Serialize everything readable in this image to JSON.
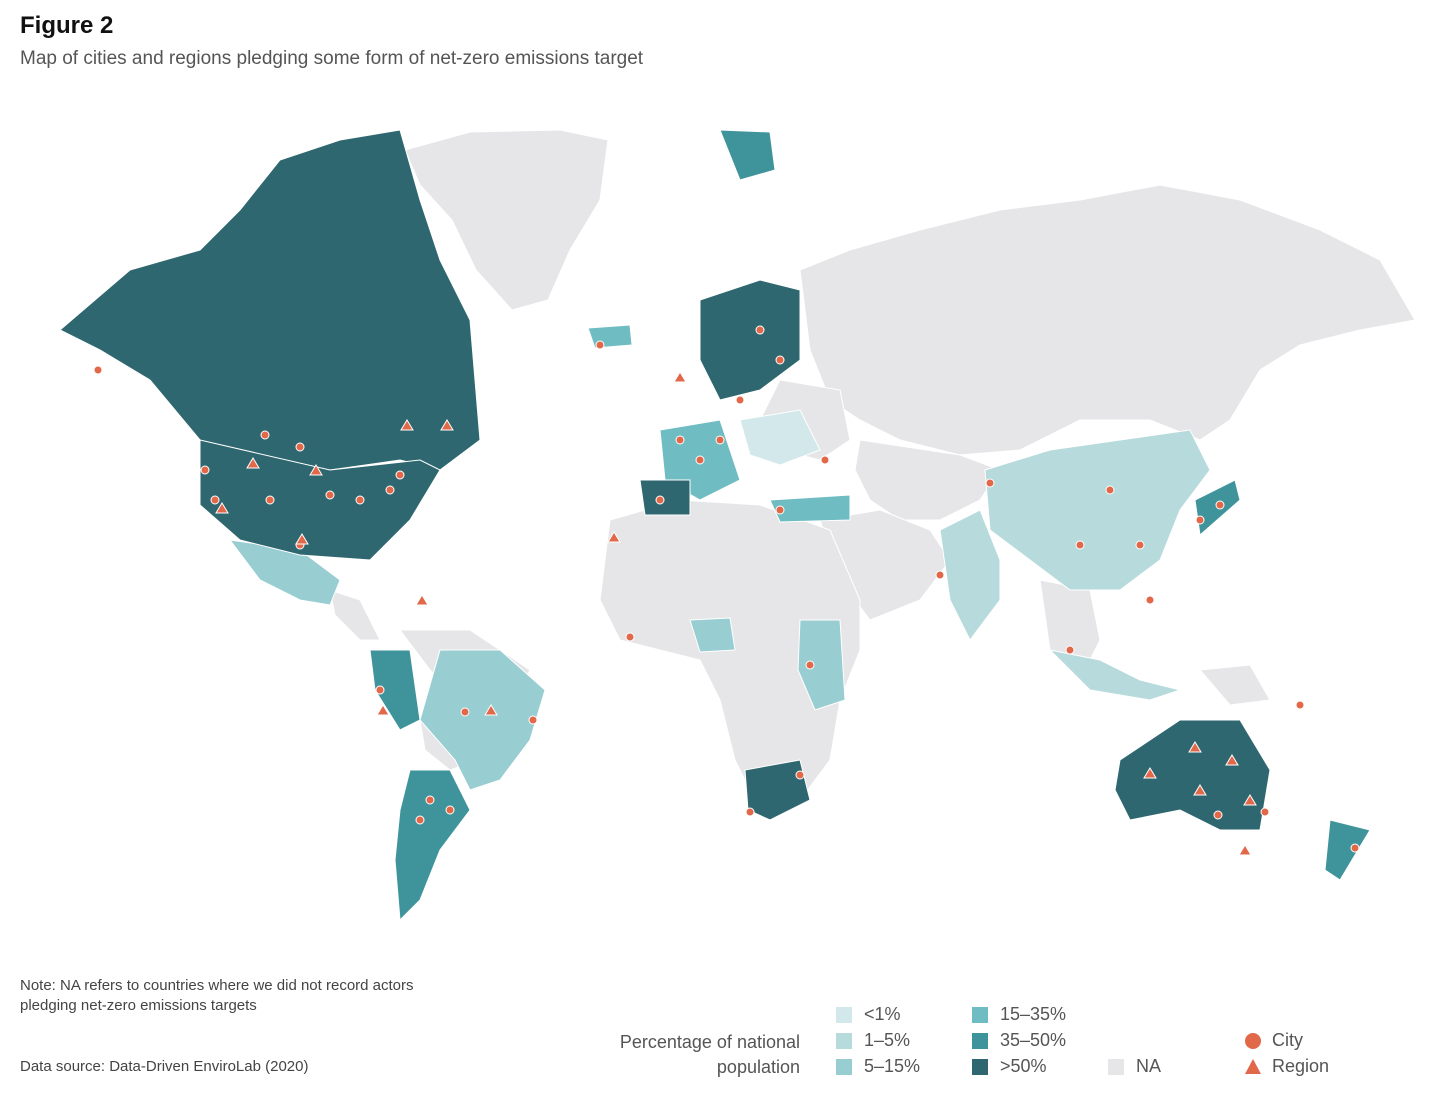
{
  "figure": {
    "label": "Figure 2",
    "subtitle": "Map of cities and regions pledging some form of net-zero emissions target"
  },
  "note": "Note: NA refers to countries where we did not record actors pledging net-zero emissions targets",
  "source": "Data source: Data-Driven EnviroLab (2020)",
  "legend": {
    "title_line1": "Percentage of national",
    "title_line2": "population",
    "bins": [
      {
        "label": "<1%",
        "color": "#d2e8ea"
      },
      {
        "label": "1–5%",
        "color": "#b7dadd"
      },
      {
        "label": "5–15%",
        "color": "#98cdd2"
      },
      {
        "label": "15–35%",
        "color": "#6fbcc2"
      },
      {
        "label": "35–50%",
        "color": "#3f949b"
      },
      {
        "label": ">50%",
        "color": "#2f6770"
      },
      {
        "label": "NA",
        "color": "#e6e6e8"
      }
    ],
    "city_label": "City",
    "region_label": "Region",
    "marker_color": "#e2684a"
  }
}
